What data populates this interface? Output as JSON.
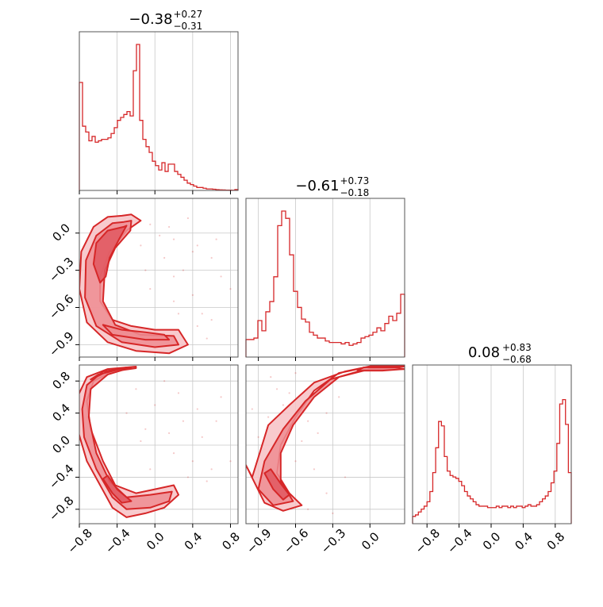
{
  "colors": {
    "series": "#d62728",
    "fill_outer": "#f7c1c4",
    "fill_mid": "#ee8d92",
    "fill_inner": "#e05860",
    "grid": "#c8c8c8",
    "frame": "#555555"
  },
  "chart_data": {
    "type": "corner",
    "titles": [
      {
        "median": "−0.38",
        "plus": "+0.27",
        "minus": "−0.31"
      },
      {
        "median": "−0.61",
        "plus": "+0.73",
        "minus": "−0.18"
      },
      {
        "median": "0.08",
        "plus": "+0.83",
        "minus": "−0.68"
      }
    ],
    "params": [
      {
        "range": [
          -0.8,
          0.88
        ],
        "ticks": [
          -0.8,
          -0.4,
          0.0,
          0.4,
          0.8
        ],
        "ticklabels": [
          "−0.8",
          "−0.4",
          "0.0",
          "0.4",
          "0.8"
        ]
      },
      {
        "range": [
          -1.0,
          0.28
        ],
        "ticks": [
          -0.9,
          -0.6,
          -0.3,
          0.0
        ],
        "ticklabels": [
          "−0.9",
          "−0.6",
          "−0.3",
          "0.0"
        ]
      },
      {
        "range": [
          -0.98,
          1.0
        ],
        "ticks": [
          -0.8,
          -0.4,
          0.0,
          0.4,
          0.8
        ],
        "ticklabels": [
          "−0.8",
          "−0.4",
          "0.0",
          "0.4",
          "0.8"
        ]
      }
    ],
    "histograms": [
      {
        "bin_edges": [
          -0.8,
          0.88
        ],
        "counts": [
          0.74,
          0.44,
          0.4,
          0.34,
          0.37,
          0.33,
          0.34,
          0.35,
          0.35,
          0.36,
          0.39,
          0.43,
          0.48,
          0.5,
          0.52,
          0.54,
          0.51,
          0.82,
          1.0,
          0.48,
          0.35,
          0.3,
          0.26,
          0.2,
          0.17,
          0.14,
          0.19,
          0.13,
          0.18,
          0.18,
          0.13,
          0.11,
          0.09,
          0.07,
          0.05,
          0.04,
          0.03,
          0.02,
          0.02,
          0.015,
          0.01,
          0.01,
          0.008,
          0.005,
          0.004,
          0.003,
          0.002,
          0.002,
          0.001,
          0.006
        ]
      },
      {
        "bin_edges": [
          -1.0,
          0.28
        ],
        "counts": [
          0.12,
          0.12,
          0.13,
          0.25,
          0.18,
          0.31,
          0.38,
          0.55,
          0.9,
          1.0,
          0.95,
          0.7,
          0.45,
          0.34,
          0.26,
          0.24,
          0.17,
          0.15,
          0.13,
          0.13,
          0.11,
          0.1,
          0.1,
          0.1,
          0.09,
          0.1,
          0.08,
          0.09,
          0.1,
          0.13,
          0.14,
          0.15,
          0.17,
          0.2,
          0.18,
          0.23,
          0.28,
          0.25,
          0.3,
          0.43
        ]
      },
      {
        "bin_edges": [
          -0.98,
          1.0
        ],
        "counts": [
          0.05,
          0.06,
          0.08,
          0.1,
          0.12,
          0.15,
          0.22,
          0.35,
          0.52,
          0.7,
          0.67,
          0.46,
          0.36,
          0.33,
          0.32,
          0.31,
          0.29,
          0.26,
          0.22,
          0.19,
          0.17,
          0.15,
          0.13,
          0.12,
          0.12,
          0.12,
          0.11,
          0.11,
          0.11,
          0.12,
          0.11,
          0.12,
          0.12,
          0.11,
          0.12,
          0.11,
          0.12,
          0.12,
          0.11,
          0.12,
          0.13,
          0.12,
          0.12,
          0.13,
          0.15,
          0.17,
          0.19,
          0.22,
          0.28,
          0.36,
          0.55,
          0.82,
          0.85,
          0.68,
          0.35
        ]
      }
    ],
    "pairs": [
      {
        "x_param": 0,
        "y_param": 1,
        "contours": [
          [
            [
              -0.35,
              0.14
            ],
            [
              -0.25,
              0.15
            ],
            [
              -0.15,
              0.1
            ],
            [
              -0.3,
              0.02
            ],
            [
              -0.48,
              -0.15
            ],
            [
              -0.58,
              -0.35
            ],
            [
              -0.58,
              -0.55
            ],
            [
              -0.45,
              -0.7
            ],
            [
              -0.25,
              -0.75
            ],
            [
              0.0,
              -0.78
            ],
            [
              0.25,
              -0.78
            ],
            [
              0.35,
              -0.9
            ],
            [
              0.15,
              -0.97
            ],
            [
              -0.2,
              -0.95
            ],
            [
              -0.5,
              -0.88
            ],
            [
              -0.72,
              -0.72
            ],
            [
              -0.8,
              -0.45
            ],
            [
              -0.78,
              -0.15
            ],
            [
              -0.65,
              0.05
            ],
            [
              -0.5,
              0.13
            ]
          ],
          [
            [
              -0.33,
              0.09
            ],
            [
              -0.25,
              0.1
            ],
            [
              -0.26,
              0.02
            ],
            [
              -0.42,
              -0.12
            ],
            [
              -0.53,
              -0.3
            ],
            [
              -0.55,
              -0.55
            ],
            [
              -0.42,
              -0.74
            ],
            [
              -0.15,
              -0.82
            ],
            [
              0.2,
              -0.83
            ],
            [
              0.25,
              -0.9
            ],
            [
              0.0,
              -0.92
            ],
            [
              -0.35,
              -0.88
            ],
            [
              -0.62,
              -0.75
            ],
            [
              -0.74,
              -0.52
            ],
            [
              -0.73,
              -0.22
            ],
            [
              -0.62,
              -0.02
            ],
            [
              -0.45,
              0.08
            ]
          ],
          [
            [
              -0.33,
              0.05
            ],
            [
              -0.3,
              0.06
            ],
            [
              -0.38,
              -0.05
            ],
            [
              -0.48,
              -0.2
            ],
            [
              -0.52,
              -0.35
            ],
            [
              -0.58,
              -0.4
            ],
            [
              -0.65,
              -0.25
            ],
            [
              -0.62,
              -0.08
            ],
            [
              -0.5,
              0.02
            ]
          ],
          [
            [
              -0.35,
              -0.78
            ],
            [
              -0.1,
              -0.8
            ],
            [
              0.1,
              -0.82
            ],
            [
              0.15,
              -0.86
            ],
            [
              -0.1,
              -0.86
            ],
            [
              -0.45,
              -0.82
            ],
            [
              -0.55,
              -0.74
            ]
          ]
        ],
        "scatter": [
          [
            -0.05,
            0.07
          ],
          [
            0.05,
            -0.02
          ],
          [
            0.2,
            -0.05
          ],
          [
            0.45,
            -0.1
          ],
          [
            0.3,
            -0.3
          ],
          [
            0.2,
            -0.35
          ],
          [
            0.6,
            -0.2
          ],
          [
            0.7,
            -0.35
          ],
          [
            0.4,
            -0.5
          ],
          [
            0.5,
            -0.65
          ],
          [
            0.1,
            -0.2
          ],
          [
            -0.1,
            -0.3
          ],
          [
            0.35,
            0.12
          ],
          [
            0.65,
            -0.05
          ],
          [
            0.45,
            -0.75
          ],
          [
            0.55,
            -0.85
          ],
          [
            0.2,
            -0.55
          ],
          [
            -0.05,
            -0.45
          ],
          [
            0.25,
            -0.65
          ],
          [
            0.8,
            -0.45
          ],
          [
            0.6,
            -0.7
          ],
          [
            0.4,
            -0.15
          ],
          [
            -0.15,
            -0.1
          ],
          [
            0.15,
            0.05
          ]
        ]
      },
      {
        "x_param": 0,
        "y_param": 2,
        "contours": [
          [
            [
              -0.2,
              0.98
            ],
            [
              -0.5,
              0.95
            ],
            [
              -0.72,
              0.85
            ],
            [
              -0.82,
              0.6
            ],
            [
              -0.82,
              0.2
            ],
            [
              -0.72,
              -0.2
            ],
            [
              -0.58,
              -0.5
            ],
            [
              -0.45,
              -0.78
            ],
            [
              -0.3,
              -0.9
            ],
            [
              -0.1,
              -0.85
            ],
            [
              0.1,
              -0.78
            ],
            [
              0.25,
              -0.62
            ],
            [
              0.2,
              -0.5
            ],
            [
              0.0,
              -0.55
            ],
            [
              -0.2,
              -0.6
            ],
            [
              -0.42,
              -0.5
            ],
            [
              -0.55,
              -0.2
            ],
            [
              -0.68,
              0.2
            ],
            [
              -0.72,
              0.55
            ],
            [
              -0.65,
              0.8
            ],
            [
              -0.45,
              0.92
            ],
            [
              -0.2,
              0.96
            ]
          ],
          [
            [
              -0.25,
              0.97
            ],
            [
              -0.55,
              0.92
            ],
            [
              -0.72,
              0.75
            ],
            [
              -0.77,
              0.45
            ],
            [
              -0.75,
              0.1
            ],
            [
              -0.62,
              -0.3
            ],
            [
              -0.45,
              -0.65
            ],
            [
              -0.3,
              -0.8
            ],
            [
              -0.05,
              -0.78
            ],
            [
              0.15,
              -0.7
            ],
            [
              0.18,
              -0.58
            ],
            [
              -0.05,
              -0.62
            ],
            [
              -0.3,
              -0.65
            ],
            [
              -0.48,
              -0.45
            ],
            [
              -0.62,
              -0.1
            ],
            [
              -0.7,
              0.35
            ],
            [
              -0.68,
              0.7
            ],
            [
              -0.5,
              0.88
            ]
          ],
          [
            [
              -0.55,
              -0.42
            ],
            [
              -0.45,
              -0.6
            ],
            [
              -0.35,
              -0.72
            ],
            [
              -0.25,
              -0.7
            ],
            [
              -0.4,
              -0.55
            ],
            [
              -0.5,
              -0.38
            ]
          ],
          [
            [
              -0.6,
              0.88
            ],
            [
              -0.4,
              0.94
            ],
            [
              -0.3,
              0.97
            ],
            [
              -0.5,
              0.92
            ],
            [
              -0.68,
              0.82
            ]
          ]
        ],
        "scatter": [
          [
            -0.2,
            0.7
          ],
          [
            0.0,
            0.5
          ],
          [
            0.3,
            0.3
          ],
          [
            0.4,
            -0.2
          ],
          [
            0.5,
            0.1
          ],
          [
            0.2,
            -0.1
          ],
          [
            -0.1,
            0.2
          ],
          [
            0.6,
            -0.3
          ],
          [
            0.7,
            0.6
          ],
          [
            0.1,
            0.8
          ],
          [
            -0.3,
            0.4
          ],
          [
            0.35,
            -0.4
          ],
          [
            0.55,
            -0.45
          ],
          [
            0.8,
            -0.2
          ],
          [
            0.25,
            0.65
          ],
          [
            -0.05,
            -0.3
          ],
          [
            0.45,
            0.45
          ],
          [
            0.15,
            0.15
          ],
          [
            0.65,
            0.3
          ],
          [
            -0.15,
            0.05
          ]
        ]
      },
      {
        "x_param": 1,
        "y_param": 2,
        "contours": [
          [
            [
              0.28,
              0.98
            ],
            [
              0.0,
              0.98
            ],
            [
              -0.25,
              0.9
            ],
            [
              -0.45,
              0.68
            ],
            [
              -0.6,
              0.35
            ],
            [
              -0.72,
              0.0
            ],
            [
              -0.75,
              -0.35
            ],
            [
              -0.65,
              -0.6
            ],
            [
              -0.55,
              -0.75
            ],
            [
              -0.7,
              -0.82
            ],
            [
              -0.85,
              -0.72
            ],
            [
              -1.0,
              -0.25
            ],
            [
              -0.95,
              -0.4
            ],
            [
              -0.88,
              -0.05
            ],
            [
              -0.82,
              0.25
            ],
            [
              -0.65,
              0.5
            ],
            [
              -0.45,
              0.78
            ],
            [
              -0.2,
              0.92
            ],
            [
              0.05,
              1.0
            ],
            [
              0.28,
              1.0
            ]
          ],
          [
            [
              0.28,
              0.95
            ],
            [
              0.0,
              0.95
            ],
            [
              -0.25,
              0.85
            ],
            [
              -0.45,
              0.6
            ],
            [
              -0.62,
              0.25
            ],
            [
              -0.72,
              -0.1
            ],
            [
              -0.72,
              -0.45
            ],
            [
              -0.62,
              -0.7
            ],
            [
              -0.78,
              -0.75
            ],
            [
              -0.9,
              -0.55
            ],
            [
              -0.85,
              -0.2
            ],
            [
              -0.7,
              0.2
            ],
            [
              -0.52,
              0.55
            ],
            [
              -0.32,
              0.82
            ],
            [
              -0.05,
              0.94
            ]
          ],
          [
            [
              -0.85,
              -0.35
            ],
            [
              -0.78,
              -0.55
            ],
            [
              -0.7,
              -0.68
            ],
            [
              -0.65,
              -0.62
            ],
            [
              -0.72,
              -0.48
            ],
            [
              -0.8,
              -0.3
            ]
          ],
          [
            [
              -0.05,
              0.97
            ],
            [
              0.2,
              0.97
            ],
            [
              0.28,
              0.95
            ],
            [
              0.1,
              0.93
            ],
            [
              -0.1,
              0.93
            ]
          ]
        ],
        "scatter": [
          [
            -0.75,
            0.7
          ],
          [
            -0.7,
            0.5
          ],
          [
            -0.82,
            0.35
          ],
          [
            -0.65,
            0.65
          ],
          [
            -0.5,
            0.3
          ],
          [
            -0.55,
            0.05
          ],
          [
            -0.9,
            0.1
          ],
          [
            -0.6,
            -0.2
          ],
          [
            -0.85,
            -0.05
          ],
          [
            -0.45,
            -0.3
          ],
          [
            -0.35,
            -0.6
          ],
          [
            -0.3,
            -0.85
          ],
          [
            -0.5,
            -0.8
          ],
          [
            -0.25,
            0.6
          ],
          [
            -0.35,
            0.4
          ],
          [
            -0.95,
            0.45
          ],
          [
            -0.8,
            0.85
          ],
          [
            -0.6,
            0.9
          ],
          [
            -0.42,
            0.15
          ],
          [
            -0.2,
            -0.4
          ]
        ]
      }
    ]
  }
}
